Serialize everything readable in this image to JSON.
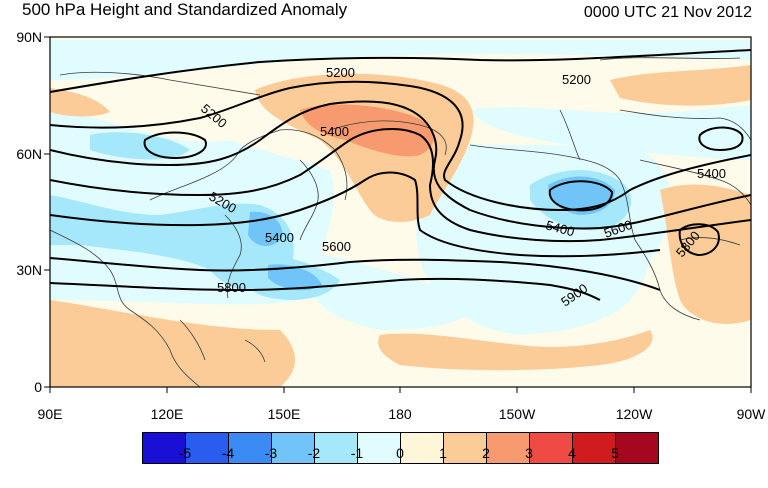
{
  "title": "500 hPa Height and Standardized Anomaly",
  "timestamp": "0000 UTC 21 Nov 2012",
  "lat_labels": [
    "90N",
    "60N",
    "30N",
    "0"
  ],
  "lon_labels": [
    "90E",
    "120E",
    "150E",
    "180",
    "150W",
    "120W",
    "90W"
  ],
  "contour_labels": [
    "5200",
    "5200",
    "5200",
    "5400",
    "5400",
    "5200",
    "5400",
    "5600",
    "5400",
    "5600",
    "5800",
    "5900",
    "5800"
  ],
  "colorbar": {
    "labels": [
      "-5",
      "-4",
      "-3",
      "-2",
      "-1",
      "0",
      "1",
      "2",
      "3",
      "4",
      "5"
    ],
    "colors": [
      "#1a0fd4",
      "#2b5cf0",
      "#3b8bf5",
      "#70c4f7",
      "#a6e8fb",
      "#e1fcfe",
      "#fef6d9",
      "#fbcc97",
      "#f89a70",
      "#ef4a43",
      "#d01b1f",
      "#a3081f"
    ]
  }
}
